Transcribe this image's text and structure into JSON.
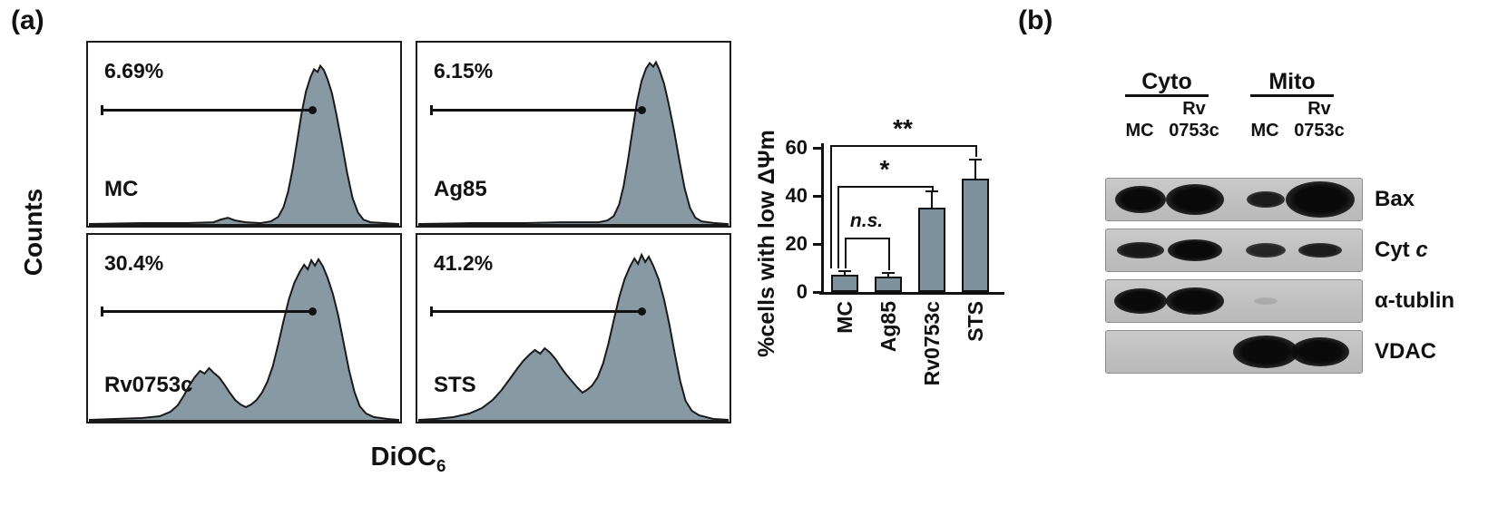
{
  "panel_a": {
    "label": "(a)",
    "y_axis_label": "Counts",
    "x_axis_label": "DiOC",
    "x_axis_sub": "6",
    "fill_color": "#8799A2",
    "histograms": [
      {
        "percent": "6.69%",
        "name": "MC"
      },
      {
        "percent": "6.15%",
        "name": "Ag85"
      },
      {
        "percent": "30.4%",
        "name": "Rv0753c"
      },
      {
        "percent": "41.2%",
        "name": "STS"
      }
    ]
  },
  "chart_data": {
    "type": "bar",
    "title": "",
    "categories": [
      "MC",
      "Ag85",
      "Rv0753c",
      "STS"
    ],
    "values": [
      7,
      6.5,
      35,
      47
    ],
    "errors": [
      1.5,
      1.5,
      7,
      8
    ],
    "ylabel": "%cells with low ΔΨm",
    "xlabel": "",
    "ylim": [
      0,
      60
    ],
    "yticks": [
      0,
      20,
      40,
      60
    ],
    "grid": false,
    "legend": false,
    "bar_color": "#7E929D",
    "significance": [
      {
        "from": "MC",
        "to": "Ag85",
        "label": "n.s.",
        "style": "italic"
      },
      {
        "from": "MC",
        "to": "Rv0753c",
        "label": "*"
      },
      {
        "from": "MC",
        "to": "STS",
        "label": "**"
      }
    ]
  },
  "panel_b": {
    "label": "(b)",
    "groups": [
      {
        "name": "Cyto"
      },
      {
        "name": "Mito"
      }
    ],
    "lane_mc": "MC",
    "lane_rv1": "Rv",
    "lane_rv2": "0753c",
    "rows": [
      {
        "label": "Bax",
        "bands": [
          [
            56,
            30,
            1
          ],
          [
            64,
            34,
            1
          ],
          [
            42,
            18,
            0.9
          ],
          [
            76,
            40,
            1
          ]
        ]
      },
      {
        "label": "Cyt",
        "label_it": "c",
        "bands": [
          [
            52,
            18,
            0.92
          ],
          [
            60,
            24,
            1
          ],
          [
            44,
            16,
            0.85
          ],
          [
            48,
            16,
            0.9
          ]
        ]
      },
      {
        "label": "α-tublin",
        "bands": [
          [
            58,
            28,
            1
          ],
          [
            64,
            30,
            1
          ],
          [
            26,
            8,
            0.12
          ],
          [
            0,
            0,
            0
          ]
        ]
      },
      {
        "label": "VDAC",
        "bands": [
          [
            0,
            0,
            0
          ],
          [
            0,
            0,
            0
          ],
          [
            72,
            36,
            1
          ],
          [
            64,
            32,
            1
          ]
        ]
      }
    ]
  }
}
